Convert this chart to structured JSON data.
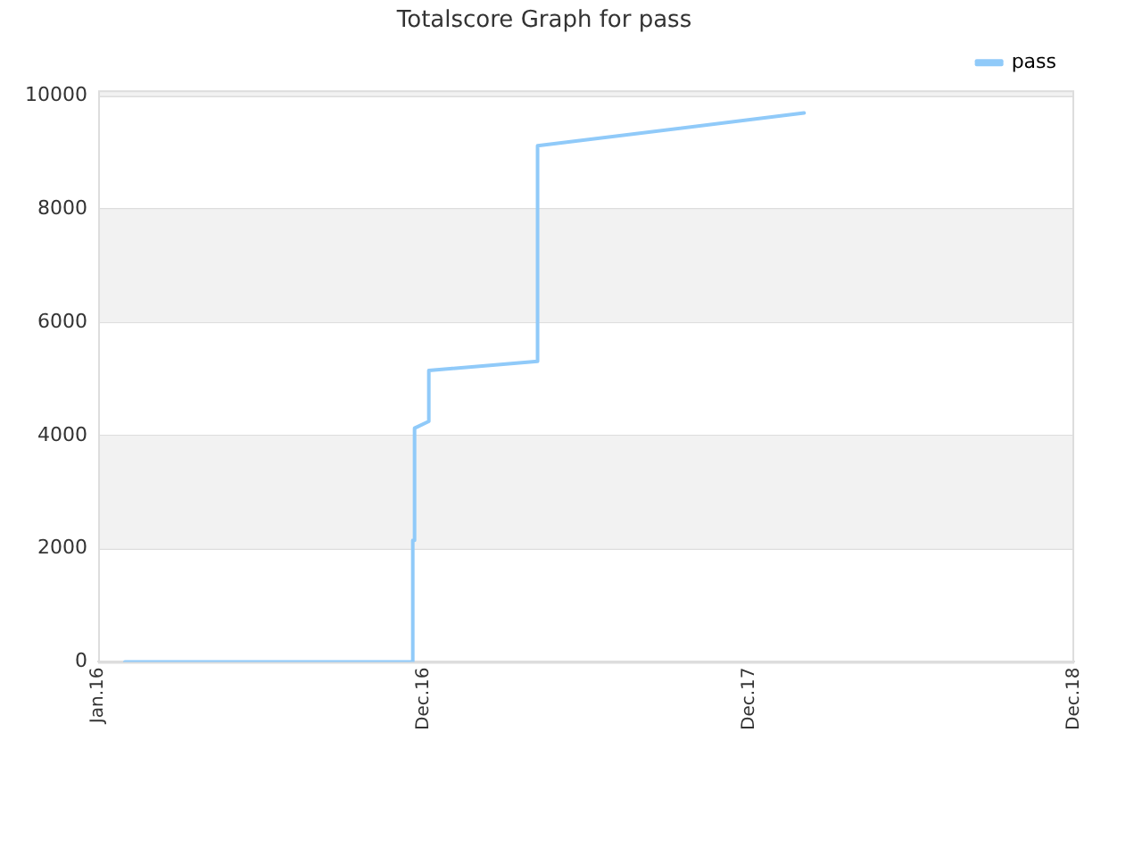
{
  "chart_data": {
    "type": "line",
    "title": "Totalscore Graph for pass",
    "x": [
      "2016-01-31",
      "2016-12-19",
      "2016-12-19",
      "2016-12-21",
      "2016-12-21",
      "2017-01-06",
      "2017-01-06",
      "2017-05-08",
      "2017-05-08",
      "2018-03-03"
    ],
    "series": [
      {
        "name": "pass",
        "color": "#90caf9",
        "values": [
          0,
          0,
          2150,
          2150,
          4130,
          4250,
          5150,
          5310,
          9120,
          9700
        ]
      }
    ],
    "xlim": [
      "2016-01-01",
      "2018-12-31"
    ],
    "xticks": [
      {
        "value": "2016-01-01",
        "label": "Jan.16"
      },
      {
        "value": "2016-12-31",
        "label": "Dec.16"
      },
      {
        "value": "2017-12-31",
        "label": "Dec.17"
      },
      {
        "value": "2018-12-31",
        "label": "Dec.18"
      }
    ],
    "ylim": [
      0,
      10100
    ],
    "yticks": [
      0,
      2000,
      4000,
      6000,
      8000,
      10000
    ],
    "grid": "y",
    "legend": "top right",
    "marker": "none",
    "line_style": "solid"
  }
}
